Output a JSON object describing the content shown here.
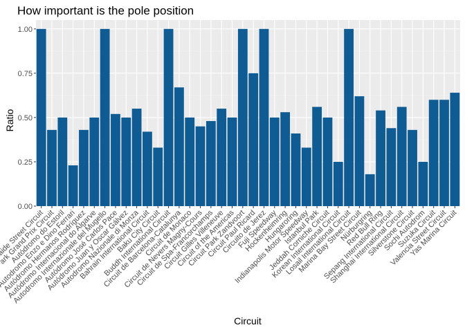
{
  "chart_data": {
    "type": "bar",
    "title": "How important is the pole position",
    "xlabel": "Circuit",
    "ylabel": "Ratio",
    "ylim": [
      0,
      1.05
    ],
    "yticks": [
      "0.00",
      "0.25",
      "0.50",
      "0.75",
      "1.00"
    ],
    "grid": true,
    "bar_color": "#0f5b94",
    "panel_color": "#ebebeb",
    "categories": [
      "Adelaide Street Circuit",
      "Albert Park Grand Prix Circuit",
      "Autódromo do Estoril",
      "Autodromo Enzo e Dino Ferrari",
      "Autódromo Hermanos Rodríguez",
      "Autódromo Internacional do Algarve",
      "Autodromo Internazionale del Mugello",
      "Autódromo José Carlos Pace",
      "Autódromo Juan y Oscar Gálvez",
      "Autodromo Nazionale di Monza",
      "Bahrain International Circuit",
      "Baku City Circuit",
      "Buddh International Circuit",
      "Circuit de Barcelona-Catalunya",
      "Circuit de Monaco",
      "Circuit de Nevers Magny-Cours",
      "Circuit de Spa-Francorchamps",
      "Circuit Gilles Villeneuve",
      "Circuit of the Americas",
      "Circuit Park Zandvoort",
      "Circuit Paul Ricard",
      "Circuito de Jerez",
      "Fuji Speedway",
      "Hockenheimring",
      "Hungaroring",
      "Indianapolis Motor Speedway",
      "Istanbul Park",
      "Jeddah Corniche Circuit",
      "Korean International Circuit",
      "Losail International Circuit",
      "Marina Bay Street Circuit",
      "Nürburgring",
      "Red Bull Ring",
      "Sepang International Circuit",
      "Shanghai International Circuit",
      "Silverstone Circuit",
      "Sochi Autodrom",
      "Suzuka Circuit",
      "Valencia Street Circuit",
      "Yas Marina Circuit"
    ],
    "values": [
      1.0,
      0.43,
      0.5,
      0.23,
      0.43,
      0.5,
      1.0,
      0.52,
      0.5,
      0.55,
      0.42,
      0.33,
      1.0,
      0.67,
      0.5,
      0.45,
      0.48,
      0.55,
      0.5,
      1.0,
      0.75,
      1.0,
      0.5,
      0.53,
      0.41,
      0.33,
      0.56,
      0.5,
      0.25,
      1.0,
      0.62,
      0.18,
      0.54,
      0.44,
      0.56,
      0.43,
      0.25,
      0.6,
      0.6,
      0.64
    ]
  }
}
